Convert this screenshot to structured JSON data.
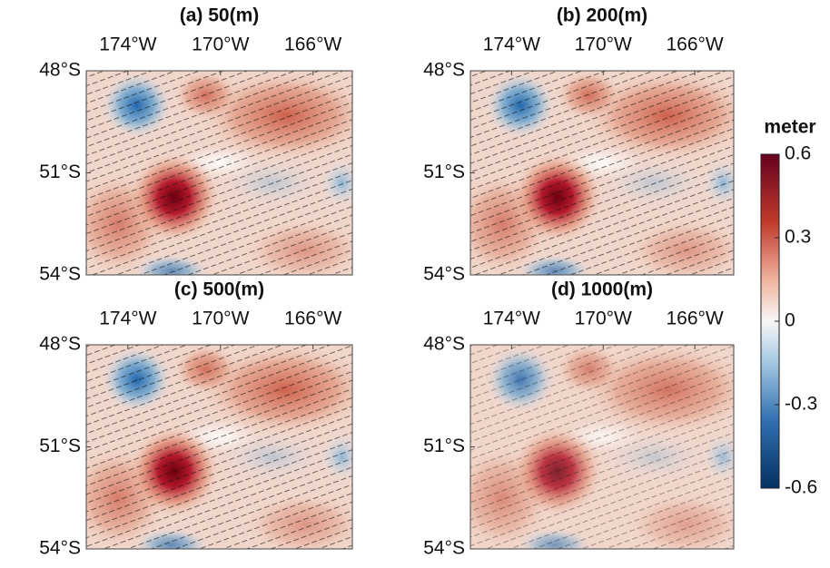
{
  "chart_data": [
    {
      "type": "map",
      "title": "(a) 50(m)",
      "xlim": [
        -175.8,
        -164.3
      ],
      "xticks": [
        {
          "value": -174,
          "label": "174°W"
        },
        {
          "value": -170,
          "label": "170°W"
        },
        {
          "value": -166,
          "label": "166°W"
        }
      ],
      "ylim": [
        -54,
        -48
      ],
      "yticks": [
        {
          "value": -48,
          "label": "48°S"
        },
        {
          "value": -51,
          "label": "51°S"
        },
        {
          "value": -54,
          "label": "54°S"
        }
      ]
    },
    {
      "type": "map",
      "title": "(b) 200(m)",
      "xlim": [
        -175.8,
        -164.3
      ],
      "xticks": [
        {
          "value": -174,
          "label": "174°W"
        },
        {
          "value": -170,
          "label": "170°W"
        },
        {
          "value": -166,
          "label": "166°W"
        }
      ],
      "ylim": [
        -54,
        -48
      ],
      "yticks": [
        {
          "value": -48,
          "label": "48°S"
        },
        {
          "value": -51,
          "label": "51°S"
        },
        {
          "value": -54,
          "label": "54°S"
        }
      ]
    },
    {
      "type": "map",
      "title": "(c) 500(m)",
      "xlim": [
        -175.8,
        -164.3
      ],
      "xticks": [
        {
          "value": -174,
          "label": "174°W"
        },
        {
          "value": -170,
          "label": "170°W"
        },
        {
          "value": -166,
          "label": "166°W"
        }
      ],
      "ylim": [
        -54,
        -48
      ],
      "yticks": [
        {
          "value": -48,
          "label": "48°S"
        },
        {
          "value": -51,
          "label": "51°S"
        },
        {
          "value": -54,
          "label": "54°S"
        }
      ]
    },
    {
      "type": "map",
      "title": "(d) 1000(m)",
      "xlim": [
        -175.8,
        -164.3
      ],
      "xticks": [
        {
          "value": -174,
          "label": "174°W"
        },
        {
          "value": -170,
          "label": "170°W"
        },
        {
          "value": -166,
          "label": "166°W"
        }
      ],
      "ylim": [
        -54,
        -48
      ],
      "yticks": [
        {
          "value": -48,
          "label": "48°S"
        },
        {
          "value": -51,
          "label": "51°S"
        },
        {
          "value": -54,
          "label": "54°S"
        }
      ]
    }
  ],
  "colorbar": {
    "label": "meter",
    "lim": [
      -0.6,
      0.6
    ],
    "ticks": [
      0.6,
      0.3,
      0,
      -0.3,
      -0.6
    ]
  }
}
